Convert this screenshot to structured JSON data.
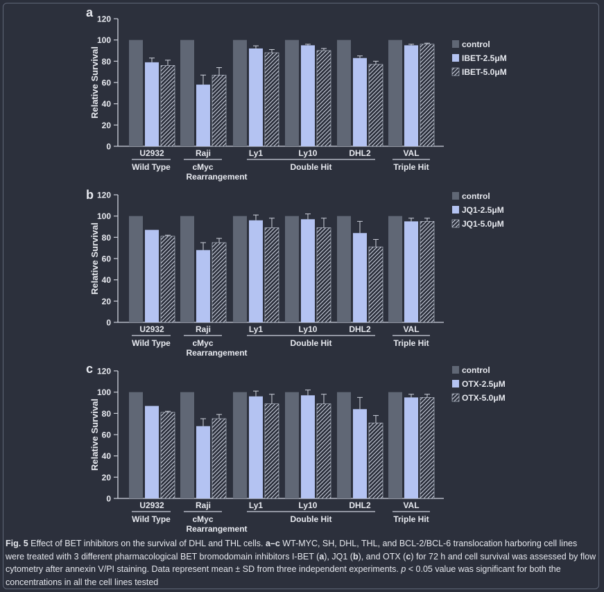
{
  "colors": {
    "background": "#2c303c",
    "control": "#606775",
    "low": "#b4c3f2",
    "high_hatch": "#d8ddeb",
    "text": "#e8eaf0",
    "axis": "#d0d4de"
  },
  "chart_data": [
    {
      "type": "bar",
      "panel_label": "a",
      "ylabel": "Relative Survival",
      "ylim": [
        0,
        120
      ],
      "yticks": [
        0,
        20,
        40,
        60,
        80,
        100,
        120
      ],
      "categories": [
        "U2932",
        "Raji",
        "Ly1",
        "Ly10",
        "DHL2",
        "VAL"
      ],
      "groups": [
        {
          "label": "Wild Type",
          "categories": [
            "U2932"
          ]
        },
        {
          "label": "cMyc Rearrangement",
          "categories": [
            "Raji"
          ]
        },
        {
          "label": "Double Hit",
          "categories": [
            "Ly1",
            "Ly10",
            "DHL2"
          ]
        },
        {
          "label": "Triple Hit",
          "categories": [
            "VAL"
          ]
        }
      ],
      "legend_position": "right",
      "series": [
        {
          "name": "control",
          "values": [
            100,
            100,
            100,
            100,
            100,
            100
          ],
          "errors": [
            0,
            0,
            0,
            0,
            0,
            0
          ],
          "style": "solid-dark"
        },
        {
          "name": "IBET-2.5μM",
          "values": [
            79,
            58,
            92,
            95,
            83,
            95
          ],
          "errors": [
            4,
            9,
            2.5,
            1,
            2,
            1
          ],
          "style": "solid-light"
        },
        {
          "name": "IBET-5.0μM",
          "values": [
            76,
            67,
            88,
            90,
            77,
            96
          ],
          "errors": [
            5,
            7,
            3,
            2,
            3,
            1
          ],
          "style": "hatched"
        }
      ]
    },
    {
      "type": "bar",
      "panel_label": "b",
      "ylabel": "Relative Survival",
      "ylim": [
        0,
        120
      ],
      "yticks": [
        0,
        20,
        40,
        60,
        80,
        100,
        120
      ],
      "categories": [
        "U2932",
        "Raji",
        "Ly1",
        "Ly10",
        "DHL2",
        "VAL"
      ],
      "groups": [
        {
          "label": "Wild Type",
          "categories": [
            "U2932"
          ]
        },
        {
          "label": "cMyc Rearrangement",
          "categories": [
            "Raji"
          ]
        },
        {
          "label": "Double Hit",
          "categories": [
            "Ly1",
            "Ly10",
            "DHL2"
          ]
        },
        {
          "label": "Triple Hit",
          "categories": [
            "VAL"
          ]
        }
      ],
      "legend_position": "right",
      "series": [
        {
          "name": "control",
          "values": [
            100,
            100,
            100,
            100,
            100,
            100
          ],
          "errors": [
            0,
            0,
            0,
            0,
            0,
            0
          ],
          "style": "solid-dark"
        },
        {
          "name": "JQ1-2.5μM",
          "values": [
            87,
            68,
            96,
            97,
            84,
            95
          ],
          "errors": [
            0,
            7,
            5,
            5,
            11,
            3
          ],
          "style": "solid-light"
        },
        {
          "name": "JQ1-5.0μM",
          "values": [
            81,
            75,
            89,
            89,
            71,
            95
          ],
          "errors": [
            1,
            4,
            9,
            9,
            7,
            3
          ],
          "style": "hatched"
        }
      ]
    },
    {
      "type": "bar",
      "panel_label": "c",
      "ylabel": "Relative Survival",
      "ylim": [
        0,
        120
      ],
      "yticks": [
        0,
        20,
        40,
        60,
        80,
        100,
        120
      ],
      "categories": [
        "U2932",
        "Raji",
        "Ly1",
        "Ly10",
        "DHL2",
        "VAL"
      ],
      "groups": [
        {
          "label": "Wild Type",
          "categories": [
            "U2932"
          ]
        },
        {
          "label": "cMyc Rearrangement",
          "categories": [
            "Raji"
          ]
        },
        {
          "label": "Double Hit",
          "categories": [
            "Ly1",
            "Ly10",
            "DHL2"
          ]
        },
        {
          "label": "Triple Hit",
          "categories": [
            "VAL"
          ]
        }
      ],
      "legend_position": "right",
      "series": [
        {
          "name": "control",
          "values": [
            100,
            100,
            100,
            100,
            100,
            100
          ],
          "errors": [
            0,
            0,
            0,
            0,
            0,
            0
          ],
          "style": "solid-dark"
        },
        {
          "name": "OTX-2.5μM",
          "values": [
            87,
            68,
            96,
            97,
            84,
            95
          ],
          "errors": [
            0,
            7,
            5,
            5,
            11,
            3
          ],
          "style": "solid-light"
        },
        {
          "name": "OTX-5.0μM",
          "values": [
            81,
            75,
            89,
            89,
            71,
            95
          ],
          "errors": [
            1,
            4,
            9,
            9,
            7,
            3
          ],
          "style": "hatched"
        }
      ]
    }
  ],
  "caption": {
    "fig_label": "Fig. 5",
    "p1": " Effect of BET inhibitors on the survival of DHL and THL cells. ",
    "p2": "a–c",
    "p3": " WT-MYC, SH, DHL, THL, and BCL-2/BCL-6 translocation harboring cell lines were treated with 3 different pharmacological BET bromodomain inhibitors I-BET (",
    "p4": "a",
    "p5": "), JQ1 (",
    "p6": "b",
    "p7": "), and OTX (",
    "p8": "c",
    "p9": ") for 72 h and cell survival was assessed by flow cytometry after annexin V/PI staining. Data represent mean ± SD from three independent experiments. ",
    "p10": "p",
    "p11": " < 0.05 value was significant for both the concentrations in all the cell lines tested"
  }
}
